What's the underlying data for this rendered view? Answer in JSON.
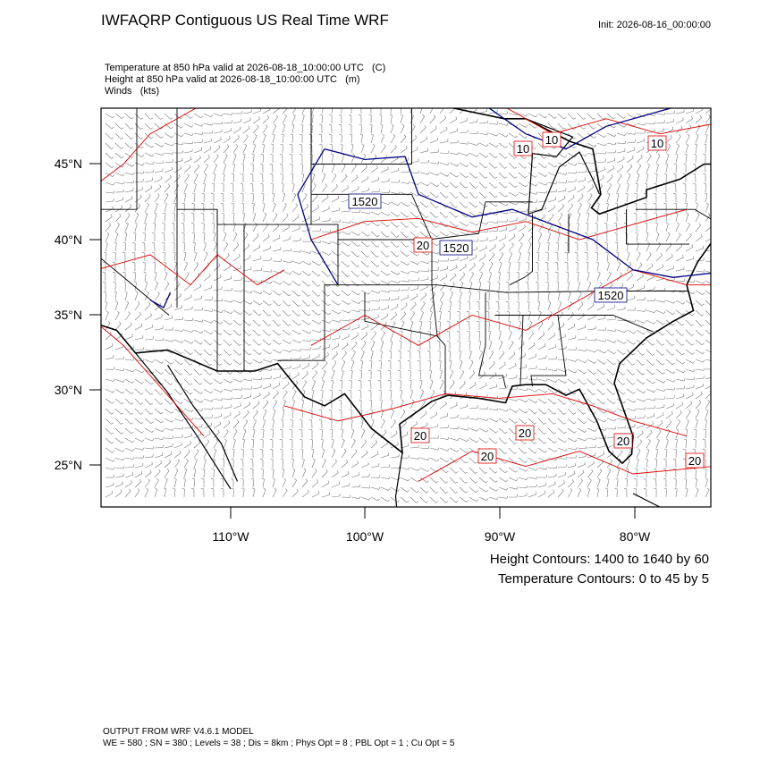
{
  "header": {
    "title": "IWFAQRP Contiguous US Real Time WRF",
    "init": "Init: 2026-08-16_00:00:00",
    "fields": [
      "Temperature at 850 hPa valid at 2026-08-18_10:00:00 UTC   (C)",
      "Height at 850 hPa valid at 2026-08-18_10:00:00 UTC   (m)",
      "Winds   (kts)"
    ]
  },
  "map": {
    "lat_labels": [
      "45°N",
      "40°N",
      "35°N",
      "30°N",
      "25°N"
    ],
    "lon_labels": [
      "110°W",
      "100°W",
      "90°W",
      "80°W"
    ],
    "contour_labels": [
      {
        "text": "10",
        "color": "#e00000"
      },
      {
        "text": "10",
        "color": "#e00000"
      },
      {
        "text": "10",
        "color": "#e00000"
      },
      {
        "text": "1520",
        "color": "#000080"
      },
      {
        "text": "20",
        "color": "#e00000"
      },
      {
        "text": "1520",
        "color": "#000080"
      },
      {
        "text": "1520",
        "color": "#000080"
      },
      {
        "text": "20",
        "color": "#e00000"
      },
      {
        "text": "20",
        "color": "#e00000"
      },
      {
        "text": "20",
        "color": "#e00000"
      },
      {
        "text": "20",
        "color": "#e00000"
      },
      {
        "text": "20",
        "color": "#e00000"
      }
    ]
  },
  "legend": [
    {
      "text": "Height Contours: 1400 to 1640 by 60",
      "color": "#000080"
    },
    {
      "text": "Temperature Contours: 0 to 45 by 5",
      "color": "#e00000"
    }
  ],
  "footer": [
    "OUTPUT FROM WRF V4.6.1 MODEL",
    "WE = 580 ; SN = 380 ; Levels = 38 ; Dis = 8km ; Phys Opt = 8 ; PBL Opt = 1 ; Cu Opt = 5"
  ]
}
